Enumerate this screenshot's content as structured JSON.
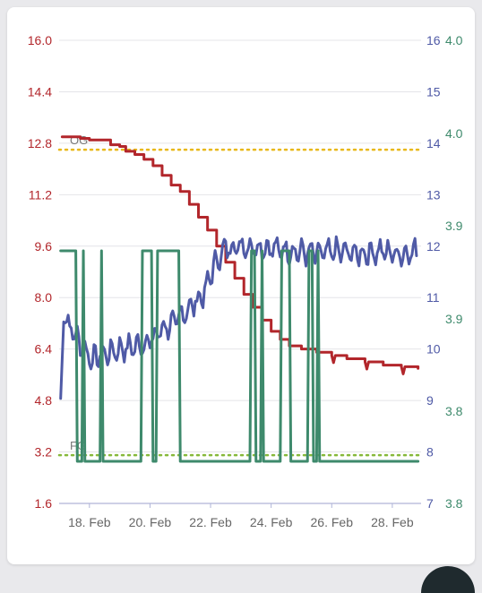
{
  "chart_data": {
    "type": "line",
    "title": "",
    "x_labels": [
      "18. Feb",
      "20. Feb",
      "22. Feb",
      "24. Feb",
      "26. Feb",
      "28. Feb"
    ],
    "x_range": [
      16.9,
      28.85
    ],
    "axes": {
      "left": {
        "ticks": [
          "1.6",
          "3.2",
          "4.8",
          "6.4",
          "8.0",
          "9.6",
          "11.2",
          "12.8",
          "14.4",
          "16.0"
        ],
        "range": [
          1.6,
          16.0
        ],
        "color": "#b2262b"
      },
      "right1": {
        "ticks": [
          "7",
          "8",
          "9",
          "10",
          "11",
          "12",
          "13",
          "14",
          "15",
          "16"
        ],
        "range": [
          7,
          16
        ],
        "color": "#4f5aa6"
      },
      "right2": {
        "ticks": [
          "3.8",
          "3.8",
          "3.9",
          "3.9",
          "4.0",
          "4.0"
        ],
        "range": [
          3.78,
          4.0
        ],
        "color": "#3e8a6c"
      }
    },
    "reference_lines": [
      {
        "label": "OG",
        "value": 12.6,
        "color": "#e8b81a"
      },
      {
        "label": "FG",
        "value": 3.1,
        "color": "#86b83a"
      }
    ],
    "series": [
      {
        "name": "",
        "color": "#b2262b",
        "axis": "left",
        "points": [
          [
            17.0,
            13.0
          ],
          [
            17.4,
            13.0
          ],
          [
            17.6,
            12.95
          ],
          [
            17.9,
            12.9
          ],
          [
            18.3,
            12.9
          ],
          [
            18.6,
            12.75
          ],
          [
            18.9,
            12.7
          ],
          [
            19.1,
            12.55
          ],
          [
            19.4,
            12.45
          ],
          [
            19.7,
            12.3
          ],
          [
            20.0,
            12.1
          ],
          [
            20.3,
            11.8
          ],
          [
            20.6,
            11.5
          ],
          [
            20.9,
            11.3
          ],
          [
            21.2,
            10.9
          ],
          [
            21.5,
            10.5
          ],
          [
            21.8,
            10.1
          ],
          [
            22.1,
            9.6
          ],
          [
            22.4,
            9.1
          ],
          [
            22.7,
            8.6
          ],
          [
            23.0,
            8.1
          ],
          [
            23.3,
            7.7
          ],
          [
            23.6,
            7.3
          ],
          [
            23.9,
            6.95
          ],
          [
            24.2,
            6.7
          ],
          [
            24.5,
            6.5
          ],
          [
            24.9,
            6.4
          ],
          [
            25.4,
            6.3
          ],
          [
            25.9,
            6.2
          ],
          [
            26.4,
            6.1
          ],
          [
            27.0,
            6.0
          ],
          [
            27.6,
            5.9
          ],
          [
            28.2,
            5.85
          ],
          [
            28.75,
            5.8
          ]
        ]
      },
      {
        "name": "",
        "color": "#4f5aa6",
        "axis": "right1",
        "points": [
          [
            16.95,
            9.0
          ],
          [
            17.05,
            10.6
          ],
          [
            17.3,
            10.4
          ],
          [
            17.7,
            10.0
          ],
          [
            18.0,
            9.8
          ],
          [
            18.4,
            9.9
          ],
          [
            18.9,
            10.0
          ],
          [
            19.4,
            10.05
          ],
          [
            19.9,
            10.15
          ],
          [
            20.3,
            10.4
          ],
          [
            20.7,
            10.5
          ],
          [
            21.0,
            10.7
          ],
          [
            21.4,
            10.9
          ],
          [
            21.7,
            11.1
          ],
          [
            22.0,
            11.6
          ],
          [
            22.3,
            11.9
          ],
          [
            22.6,
            12.0
          ],
          [
            23.2,
            12.0
          ],
          [
            24.0,
            11.95
          ],
          [
            24.7,
            11.9
          ],
          [
            25.4,
            11.85
          ],
          [
            26.1,
            11.9
          ],
          [
            26.8,
            11.85
          ],
          [
            27.5,
            11.9
          ],
          [
            28.2,
            11.85
          ],
          [
            28.75,
            11.9
          ]
        ]
      },
      {
        "name": "",
        "color": "#3e8a6c",
        "axis": "right2",
        "points": [
          [
            16.95,
            3.9
          ],
          [
            17.45,
            3.9
          ],
          [
            17.5,
            3.8
          ],
          [
            17.65,
            3.8
          ],
          [
            17.7,
            3.9
          ],
          [
            17.75,
            3.8
          ],
          [
            18.25,
            3.8
          ],
          [
            18.3,
            3.9
          ],
          [
            18.35,
            3.8
          ],
          [
            19.6,
            3.8
          ],
          [
            19.65,
            3.9
          ],
          [
            19.95,
            3.9
          ],
          [
            20.0,
            3.8
          ],
          [
            20.1,
            3.8
          ],
          [
            20.15,
            3.9
          ],
          [
            20.85,
            3.9
          ],
          [
            20.9,
            3.8
          ],
          [
            23.2,
            3.8
          ],
          [
            23.25,
            3.9
          ],
          [
            23.35,
            3.9
          ],
          [
            23.4,
            3.8
          ],
          [
            23.55,
            3.8
          ],
          [
            23.6,
            3.9
          ],
          [
            23.65,
            3.8
          ],
          [
            24.2,
            3.8
          ],
          [
            24.25,
            3.9
          ],
          [
            24.5,
            3.9
          ],
          [
            24.55,
            3.8
          ],
          [
            25.1,
            3.8
          ],
          [
            25.15,
            3.9
          ],
          [
            25.25,
            3.9
          ],
          [
            25.3,
            3.8
          ],
          [
            25.4,
            3.8
          ],
          [
            25.45,
            3.9
          ],
          [
            25.5,
            3.8
          ],
          [
            28.75,
            3.8
          ]
        ]
      }
    ]
  }
}
